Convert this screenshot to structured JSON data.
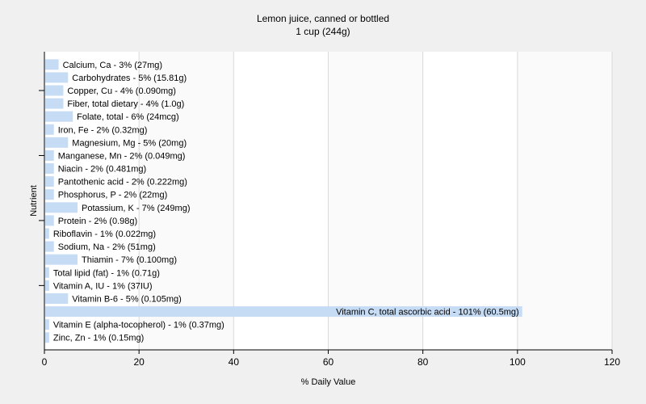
{
  "chart_data": {
    "type": "bar",
    "orientation": "horizontal",
    "title": "Lemon juice, canned or bottled",
    "subtitle": "1 cup (244g)",
    "xlabel": "% Daily Value",
    "ylabel": "Nutrient",
    "xlim": [
      0,
      120
    ],
    "xticks": [
      0,
      20,
      40,
      60,
      80,
      100,
      120
    ],
    "grid": true,
    "bar_color": "#c6dcf5",
    "gridline_color": "#d9d9d9",
    "categories": [
      "Calcium, Ca",
      "Carbohydrates",
      "Copper, Cu",
      "Fiber, total dietary",
      "Folate, total",
      "Iron, Fe",
      "Magnesium, Mg",
      "Manganese, Mn",
      "Niacin",
      "Pantothenic acid",
      "Phosphorus, P",
      "Potassium, K",
      "Protein",
      "Riboflavin",
      "Sodium, Na",
      "Thiamin",
      "Total lipid (fat)",
      "Vitamin A, IU",
      "Vitamin B-6",
      "Vitamin C, total ascorbic acid",
      "Vitamin E (alpha-tocopherol)",
      "Zinc, Zn"
    ],
    "values": [
      3,
      5,
      4,
      4,
      6,
      2,
      5,
      2,
      2,
      2,
      2,
      7,
      2,
      1,
      2,
      7,
      1,
      1,
      5,
      101,
      1,
      1
    ],
    "labels": [
      "Calcium, Ca - 3% (27mg)",
      "Carbohydrates - 5% (15.81g)",
      "Copper, Cu - 4% (0.090mg)",
      "Fiber, total dietary - 4% (1.0g)",
      "Folate, total - 6% (24mcg)",
      "Iron, Fe - 2% (0.32mg)",
      "Magnesium, Mg - 5% (20mg)",
      "Manganese, Mn - 2% (0.049mg)",
      "Niacin - 2% (0.481mg)",
      "Pantothenic acid - 2% (0.222mg)",
      "Phosphorus, P - 2% (22mg)",
      "Potassium, K - 7% (249mg)",
      "Protein - 2% (0.98g)",
      "Riboflavin - 1% (0.022mg)",
      "Sodium, Na - 2% (51mg)",
      "Thiamin - 7% (0.100mg)",
      "Total lipid (fat) - 1% (0.71g)",
      "Vitamin A, IU - 1% (37IU)",
      "Vitamin B-6 - 5% (0.105mg)",
      "Vitamin C, total ascorbic acid - 101% (60.5mg)",
      "Vitamin E (alpha-tocopherol) - 1% (0.37mg)",
      "Zinc, Zn - 1% (0.15mg)"
    ]
  }
}
